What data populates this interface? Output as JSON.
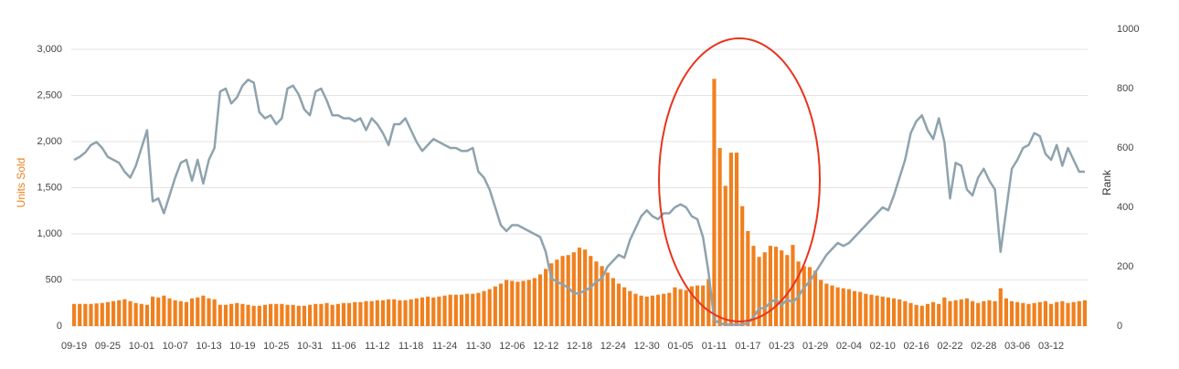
{
  "chart_data": {
    "type": "combo",
    "categories": [
      "09-19",
      null,
      null,
      null,
      null,
      null,
      "09-25",
      null,
      null,
      null,
      null,
      null,
      "10-01",
      null,
      null,
      null,
      null,
      null,
      "10-07",
      null,
      null,
      null,
      null,
      null,
      "10-13",
      null,
      null,
      null,
      null,
      null,
      "10-19",
      null,
      null,
      null,
      null,
      null,
      "10-25",
      null,
      null,
      null,
      null,
      null,
      "10-31",
      null,
      null,
      null,
      null,
      null,
      "11-06",
      null,
      null,
      null,
      null,
      null,
      "11-12",
      null,
      null,
      null,
      null,
      null,
      "11-18",
      null,
      null,
      null,
      null,
      null,
      "11-24",
      null,
      null,
      null,
      null,
      null,
      "11-30",
      null,
      null,
      null,
      null,
      null,
      "12-06",
      null,
      null,
      null,
      null,
      null,
      "12-12",
      null,
      null,
      null,
      null,
      null,
      "12-18",
      null,
      null,
      null,
      null,
      null,
      "12-24",
      null,
      null,
      null,
      null,
      null,
      "12-30",
      null,
      null,
      null,
      null,
      null,
      "01-05",
      null,
      null,
      null,
      null,
      null,
      "01-11",
      null,
      null,
      null,
      null,
      null,
      "01-17",
      null,
      null,
      null,
      null,
      null,
      "01-23",
      null,
      null,
      null,
      null,
      null,
      "01-29",
      null,
      null,
      null,
      null,
      null,
      "02-04",
      null,
      null,
      null,
      null,
      null,
      "02-10",
      null,
      null,
      null,
      null,
      null,
      "02-16",
      null,
      null,
      null,
      null,
      null,
      "02-22",
      null,
      null,
      null,
      null,
      null,
      "02-28",
      null,
      null,
      null,
      null,
      null,
      "03-06",
      null,
      null,
      null,
      null,
      null,
      "03-12",
      null,
      null,
      null,
      null,
      null,
      null
    ],
    "series": [
      {
        "name": "Units Sold",
        "type": "bar",
        "color": "#f0801e",
        "values": [
          240,
          240,
          240,
          240,
          245,
          250,
          260,
          270,
          280,
          290,
          270,
          250,
          240,
          230,
          320,
          310,
          330,
          300,
          280,
          270,
          260,
          300,
          310,
          330,
          300,
          290,
          230,
          230,
          240,
          250,
          240,
          230,
          220,
          220,
          230,
          240,
          240,
          240,
          230,
          230,
          220,
          220,
          230,
          240,
          240,
          250,
          230,
          240,
          250,
          250,
          260,
          260,
          270,
          270,
          280,
          280,
          290,
          290,
          280,
          280,
          290,
          300,
          310,
          320,
          310,
          320,
          330,
          340,
          340,
          340,
          350,
          350,
          360,
          380,
          400,
          430,
          460,
          500,
          490,
          480,
          490,
          500,
          520,
          560,
          620,
          680,
          720,
          760,
          770,
          800,
          850,
          830,
          760,
          700,
          650,
          580,
          520,
          460,
          420,
          380,
          350,
          330,
          320,
          330,
          340,
          350,
          360,
          420,
          400,
          390,
          430,
          440,
          440,
          510,
          2680,
          1930,
          1520,
          1880,
          1880,
          1300,
          1030,
          870,
          750,
          800,
          870,
          860,
          820,
          770,
          880,
          700,
          650,
          640,
          600,
          500,
          460,
          440,
          420,
          410,
          400,
          380,
          370,
          350,
          340,
          330,
          320,
          310,
          300,
          290,
          270,
          250,
          230,
          220,
          240,
          260,
          240,
          310,
          270,
          280,
          290,
          300,
          270,
          250,
          270,
          280,
          270,
          410,
          300,
          270,
          260,
          250,
          240,
          250,
          260,
          270,
          240,
          260,
          270,
          250,
          260,
          270,
          280
        ]
      },
      {
        "name": "Rank",
        "type": "line",
        "axis": "y2",
        "color": "#8fa3ad",
        "values": [
          560,
          570,
          585,
          610,
          620,
          600,
          570,
          560,
          550,
          520,
          500,
          540,
          600,
          660,
          420,
          430,
          380,
          440,
          500,
          550,
          560,
          490,
          560,
          480,
          560,
          600,
          790,
          800,
          750,
          770,
          810,
          830,
          820,
          720,
          700,
          710,
          680,
          700,
          800,
          810,
          780,
          730,
          710,
          790,
          800,
          760,
          710,
          710,
          700,
          700,
          690,
          700,
          660,
          700,
          680,
          650,
          610,
          680,
          680,
          700,
          660,
          620,
          590,
          610,
          630,
          620,
          610,
          600,
          600,
          590,
          590,
          600,
          520,
          500,
          460,
          400,
          340,
          320,
          340,
          340,
          330,
          320,
          310,
          300,
          250,
          160,
          150,
          140,
          130,
          110,
          110,
          120,
          130,
          150,
          160,
          200,
          220,
          240,
          230,
          290,
          330,
          370,
          390,
          370,
          360,
          380,
          380,
          400,
          410,
          400,
          370,
          360,
          300,
          180,
          20,
          10,
          5,
          5,
          5,
          5,
          10,
          30,
          60,
          60,
          80,
          90,
          70,
          90,
          80,
          100,
          130,
          150,
          180,
          210,
          240,
          260,
          280,
          270,
          280,
          300,
          320,
          340,
          360,
          380,
          400,
          390,
          440,
          500,
          560,
          650,
          690,
          710,
          660,
          630,
          700,
          620,
          430,
          550,
          540,
          460,
          440,
          500,
          530,
          490,
          460,
          250,
          390,
          530,
          560,
          600,
          610,
          650,
          640,
          580,
          560,
          610,
          540,
          600,
          560,
          520,
          520
        ]
      }
    ],
    "ylim": [
      0,
      3000
    ],
    "yticks": [
      0,
      500,
      {
        "value": 1000,
        "label": "1,000"
      },
      {
        "value": 1500,
        "label": "1,500"
      },
      {
        "value": 2000,
        "label": "2,000"
      },
      {
        "value": 2500,
        "label": "2,500"
      },
      {
        "value": 3000,
        "label": "3,000"
      }
    ],
    "y2lim": [
      0,
      1000
    ],
    "y2ticks": [
      0,
      200,
      400,
      600,
      800,
      1000
    ],
    "grid": true
  }
}
